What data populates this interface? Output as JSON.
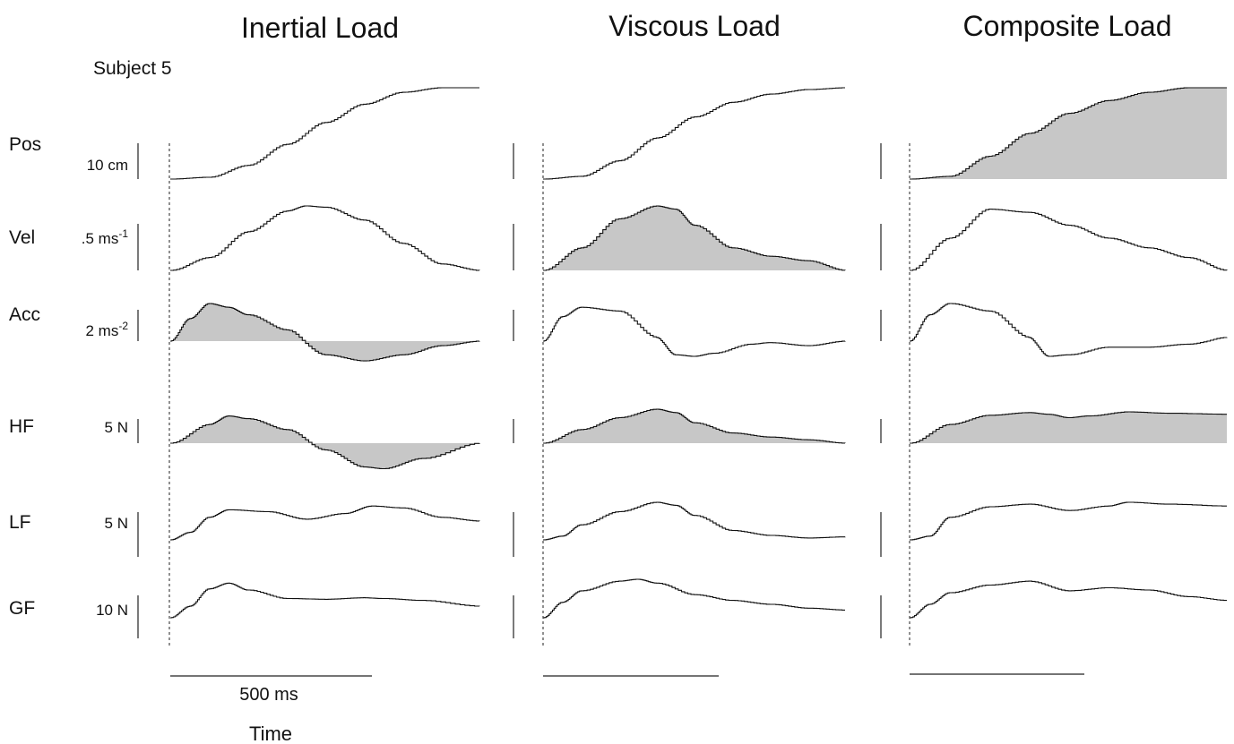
{
  "figure": {
    "subject_label": "Subject 5",
    "time_label": "Time",
    "time_scale_label": "500 ms"
  },
  "chart_data": {
    "type": "line",
    "panels": [
      {
        "title": "Inertial Load",
        "shaded": [
          "Acc",
          "HF"
        ]
      },
      {
        "title": "Viscous Load",
        "shaded": [
          "Vel",
          "HF"
        ]
      },
      {
        "title": "Composite Load",
        "shaded": [
          "Pos",
          "HF"
        ]
      }
    ],
    "rows": [
      {
        "name": "Pos",
        "scale": "10 cm"
      },
      {
        "name": "Vel",
        "scale": ".5 ms",
        "scale_exp": "-1"
      },
      {
        "name": "Acc",
        "scale": "2 ms",
        "scale_exp": "-2"
      },
      {
        "name": "HF",
        "scale": "5 N"
      },
      {
        "name": "LF",
        "scale": "5 N"
      },
      {
        "name": "GF",
        "scale": "10 N"
      }
    ],
    "x_unit": "ms",
    "traces": [
      [
        [
          [
            0,
            0
          ],
          [
            100,
            0.02
          ],
          [
            200,
            0.15
          ],
          [
            300,
            0.38
          ],
          [
            400,
            0.62
          ],
          [
            500,
            0.82
          ],
          [
            600,
            0.95
          ],
          [
            700,
            1.0
          ],
          [
            800,
            1.0
          ]
        ],
        [
          [
            0,
            0
          ],
          [
            100,
            0.2
          ],
          [
            200,
            0.6
          ],
          [
            300,
            0.92
          ],
          [
            350,
            1.0
          ],
          [
            400,
            0.98
          ],
          [
            500,
            0.78
          ],
          [
            600,
            0.42
          ],
          [
            700,
            0.1
          ],
          [
            800,
            0
          ]
        ],
        [
          [
            0,
            0
          ],
          [
            50,
            0.6
          ],
          [
            100,
            1.0
          ],
          [
            150,
            0.9
          ],
          [
            200,
            0.7
          ],
          [
            300,
            0.3
          ],
          [
            400,
            -0.45
          ],
          [
            500,
            -0.65
          ],
          [
            600,
            -0.45
          ],
          [
            700,
            -0.15
          ],
          [
            800,
            0
          ]
        ],
        [
          [
            0,
            0
          ],
          [
            100,
            0.55
          ],
          [
            150,
            0.8
          ],
          [
            200,
            0.72
          ],
          [
            300,
            0.4
          ],
          [
            400,
            -0.2
          ],
          [
            500,
            -0.7
          ],
          [
            550,
            -0.75
          ],
          [
            650,
            -0.45
          ],
          [
            800,
            0
          ]
        ],
        [
          [
            0,
            0
          ],
          [
            50,
            0.2
          ],
          [
            100,
            0.6
          ],
          [
            150,
            0.8
          ],
          [
            250,
            0.75
          ],
          [
            350,
            0.55
          ],
          [
            450,
            0.7
          ],
          [
            520,
            0.9
          ],
          [
            600,
            0.85
          ],
          [
            700,
            0.6
          ],
          [
            800,
            0.5
          ]
        ],
        [
          [
            0,
            0
          ],
          [
            50,
            0.3
          ],
          [
            100,
            0.75
          ],
          [
            150,
            0.9
          ],
          [
            200,
            0.72
          ],
          [
            300,
            0.5
          ],
          [
            400,
            0.48
          ],
          [
            500,
            0.52
          ],
          [
            550,
            0.5
          ],
          [
            650,
            0.45
          ],
          [
            800,
            0.3
          ]
        ]
      ],
      [
        [
          [
            0,
            0
          ],
          [
            100,
            0.03
          ],
          [
            200,
            0.2
          ],
          [
            300,
            0.45
          ],
          [
            400,
            0.68
          ],
          [
            500,
            0.84
          ],
          [
            600,
            0.93
          ],
          [
            700,
            0.98
          ],
          [
            800,
            1.0
          ]
        ],
        [
          [
            0,
            0
          ],
          [
            100,
            0.35
          ],
          [
            200,
            0.8
          ],
          [
            300,
            1.0
          ],
          [
            350,
            0.95
          ],
          [
            400,
            0.7
          ],
          [
            500,
            0.35
          ],
          [
            600,
            0.22
          ],
          [
            700,
            0.15
          ],
          [
            800,
            0
          ]
        ],
        [
          [
            0,
            0
          ],
          [
            50,
            0.65
          ],
          [
            100,
            0.9
          ],
          [
            200,
            0.8
          ],
          [
            300,
            0.1
          ],
          [
            350,
            -0.45
          ],
          [
            400,
            -0.5
          ],
          [
            450,
            -0.4
          ],
          [
            550,
            -0.1
          ],
          [
            600,
            -0.05
          ],
          [
            700,
            -0.15
          ],
          [
            800,
            0
          ]
        ],
        [
          [
            0,
            0
          ],
          [
            100,
            0.4
          ],
          [
            200,
            0.75
          ],
          [
            300,
            1.0
          ],
          [
            350,
            0.9
          ],
          [
            400,
            0.6
          ],
          [
            500,
            0.3
          ],
          [
            600,
            0.18
          ],
          [
            700,
            0.1
          ],
          [
            800,
            0
          ]
        ],
        [
          [
            0,
            0
          ],
          [
            50,
            0.1
          ],
          [
            100,
            0.4
          ],
          [
            200,
            0.75
          ],
          [
            300,
            1.0
          ],
          [
            350,
            0.92
          ],
          [
            400,
            0.65
          ],
          [
            500,
            0.25
          ],
          [
            600,
            0.12
          ],
          [
            700,
            0.05
          ],
          [
            800,
            0.08
          ]
        ],
        [
          [
            0,
            0
          ],
          [
            50,
            0.4
          ],
          [
            100,
            0.7
          ],
          [
            200,
            0.95
          ],
          [
            250,
            1.0
          ],
          [
            300,
            0.9
          ],
          [
            400,
            0.6
          ],
          [
            500,
            0.45
          ],
          [
            600,
            0.35
          ],
          [
            700,
            0.25
          ],
          [
            800,
            0.2
          ]
        ]
      ],
      [
        [
          [
            0,
            0
          ],
          [
            100,
            0.03
          ],
          [
            200,
            0.25
          ],
          [
            300,
            0.5
          ],
          [
            400,
            0.72
          ],
          [
            500,
            0.86
          ],
          [
            600,
            0.95
          ],
          [
            700,
            1.0
          ],
          [
            800,
            1.0
          ]
        ],
        [
          [
            0,
            0
          ],
          [
            100,
            0.5
          ],
          [
            200,
            0.95
          ],
          [
            300,
            0.9
          ],
          [
            400,
            0.7
          ],
          [
            500,
            0.5
          ],
          [
            600,
            0.35
          ],
          [
            700,
            0.2
          ],
          [
            800,
            0.0
          ]
        ],
        [
          [
            0,
            0
          ],
          [
            50,
            0.7
          ],
          [
            100,
            1.0
          ],
          [
            200,
            0.8
          ],
          [
            300,
            0.1
          ],
          [
            350,
            -0.5
          ],
          [
            400,
            -0.45
          ],
          [
            500,
            -0.2
          ],
          [
            600,
            -0.2
          ],
          [
            700,
            -0.1
          ],
          [
            800,
            0.1
          ]
        ],
        [
          [
            0,
            0
          ],
          [
            100,
            0.55
          ],
          [
            200,
            0.82
          ],
          [
            300,
            0.9
          ],
          [
            350,
            0.85
          ],
          [
            400,
            0.75
          ],
          [
            450,
            0.8
          ],
          [
            550,
            0.92
          ],
          [
            650,
            0.88
          ],
          [
            800,
            0.85
          ]
        ],
        [
          [
            0,
            0
          ],
          [
            50,
            0.1
          ],
          [
            100,
            0.6
          ],
          [
            200,
            0.88
          ],
          [
            300,
            0.95
          ],
          [
            400,
            0.78
          ],
          [
            500,
            0.9
          ],
          [
            550,
            1.0
          ],
          [
            650,
            0.95
          ],
          [
            800,
            0.9
          ]
        ],
        [
          [
            0,
            0
          ],
          [
            50,
            0.35
          ],
          [
            100,
            0.65
          ],
          [
            200,
            0.85
          ],
          [
            300,
            0.95
          ],
          [
            400,
            0.7
          ],
          [
            500,
            0.78
          ],
          [
            600,
            0.72
          ],
          [
            700,
            0.55
          ],
          [
            800,
            0.45
          ]
        ]
      ]
    ]
  }
}
